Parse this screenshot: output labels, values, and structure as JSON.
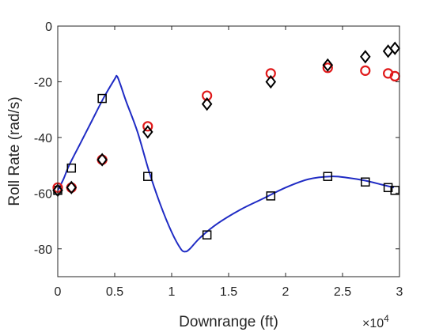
{
  "chart_data": {
    "type": "scatter",
    "title": "",
    "xlabel": "Downrange (ft)",
    "ylabel": "Roll Rate (rad/s)",
    "x_multiplier_label": "×10",
    "x_multiplier_exponent": "4",
    "xlim": [
      0,
      3.0
    ],
    "ylim": [
      -90,
      0
    ],
    "x_scale_factor": 10000,
    "xticks": [
      0,
      0.5,
      1,
      1.5,
      2,
      2.5,
      3
    ],
    "xtick_labels": [
      "0",
      "0.5",
      "1",
      "1.5",
      "2",
      "2.5",
      "3"
    ],
    "yticks": [
      0,
      -20,
      -40,
      -60,
      -80
    ],
    "ytick_labels": [
      "0",
      "-20",
      "-40",
      "-60",
      "-80"
    ],
    "grid": false,
    "legend": "none",
    "series": [
      {
        "marker": "line",
        "color": "#1f2bc4",
        "x": [
          0,
          0.05,
          0.1,
          0.2,
          0.3,
          0.4,
          0.5,
          0.52,
          0.55,
          0.6,
          0.7,
          0.8,
          0.9,
          1.0,
          1.08,
          1.12,
          1.16,
          1.25,
          1.4,
          1.6,
          1.8,
          2.0,
          2.2,
          2.4,
          2.55,
          2.7,
          2.85,
          2.95
        ],
        "y": [
          -59,
          -55,
          -50,
          -42,
          -34,
          -26,
          -19,
          -18,
          -21,
          -27,
          -38,
          -52,
          -64,
          -74,
          -80,
          -81,
          -80,
          -76,
          -71,
          -66,
          -62,
          -58,
          -55,
          -54,
          -54.5,
          -55.5,
          -57,
          -58
        ]
      },
      {
        "marker": "square",
        "color": "#000000",
        "x": [
          0,
          0.12,
          0.39,
          0.79,
          1.31,
          1.87,
          2.37,
          2.7,
          2.9,
          2.96
        ],
        "y": [
          -59,
          -51,
          -26,
          -54,
          -75,
          -61,
          -54,
          -56,
          -58,
          -59
        ]
      },
      {
        "marker": "circle",
        "color": "#e0191a",
        "x": [
          0,
          0.12,
          0.39,
          0.79,
          1.31,
          1.87,
          2.37,
          2.7,
          2.9,
          2.96
        ],
        "y": [
          -58,
          -58,
          -48,
          -36,
          -25,
          -17,
          -15,
          -16,
          -17,
          -18
        ]
      },
      {
        "marker": "diamond",
        "color": "#000000",
        "x": [
          0,
          0.12,
          0.39,
          0.79,
          1.31,
          1.87,
          2.37,
          2.7,
          2.9,
          2.96
        ],
        "y": [
          -59,
          -58,
          -48,
          -38,
          -28,
          -20,
          -14,
          -11,
          -9,
          -8
        ]
      }
    ]
  }
}
